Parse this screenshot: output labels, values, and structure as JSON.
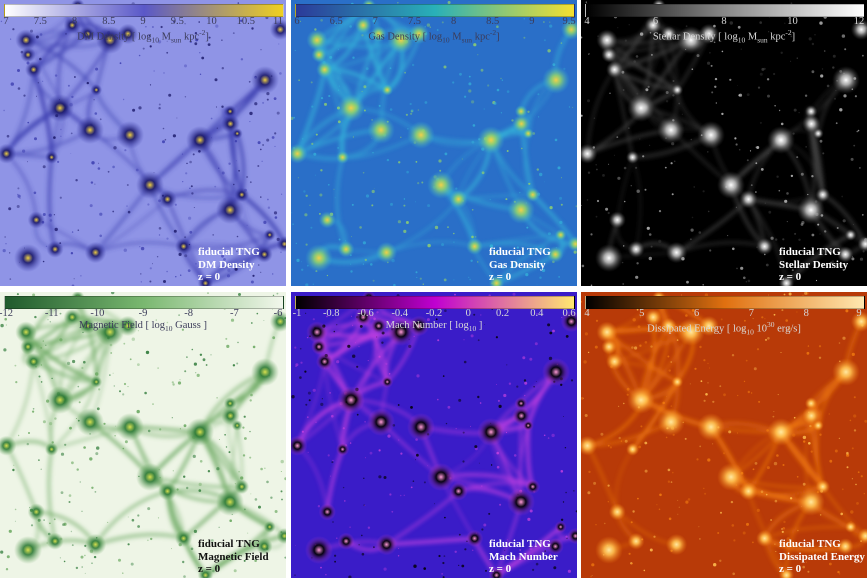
{
  "panels": [
    {
      "id": "dm",
      "cbar_label_text": "DM Density [ log10 Msun kpc-2 ]",
      "cbar_label": {
        "pre": "DM Density [ log",
        "sub1": "10",
        "mid": " M",
        "sub2": "sun",
        "mid2": " kpc",
        "sup": "-2",
        "post": "]"
      },
      "ticks": [
        "7",
        "7.5",
        "8",
        "8.5",
        "9",
        "9.5",
        "10",
        "10.5",
        "11"
      ],
      "caption": [
        "fiducial TNG",
        "DM Density",
        "z = 0"
      ],
      "colors": {
        "bg": "#8f94e6",
        "fil": "#3d3fb0",
        "knot": "#1c1a6b",
        "hot": "#f0d040",
        "cbar_start": "#ffffff",
        "cbar_mid": "#5a58c8",
        "cbar_end": "#f0d020",
        "text": "#ffffff"
      }
    },
    {
      "id": "gas",
      "cbar_label_text": "Gas Density [ log10 Msun kpc-2 ]",
      "cbar_label": {
        "pre": "Gas Density [ log",
        "sub1": "10",
        "mid": " M",
        "sub2": "sun",
        "mid2": " kpc",
        "sup": "-2",
        "post": "]"
      },
      "ticks": [
        "6",
        "6.5",
        "7",
        "7.5",
        "8",
        "8.5",
        "9",
        "9.5"
      ],
      "caption": [
        "fiducial TNG",
        "Gas Density",
        "z = 0"
      ],
      "colors": {
        "bg": "#2a6fc8",
        "fil": "#34b0d8",
        "knot": "#8fd070",
        "hot": "#f2d048",
        "cbar_start": "#2b3a9a",
        "cbar_mid": "#29b0b8",
        "cbar_end": "#f5e030",
        "text": "#ffffff"
      }
    },
    {
      "id": "stars",
      "cbar_label_text": "Stellar Density [ log10 Msun kpc-2 ]",
      "cbar_label": {
        "pre": "Stellar Density [ log",
        "sub1": "10",
        "mid": " M",
        "sub2": "sun",
        "mid2": " kpc",
        "sup": "-2",
        "post": "]"
      },
      "ticks": [
        "4",
        "6",
        "8",
        "10",
        "12"
      ],
      "caption": [
        "fiducial TNG",
        "Stellar Density",
        "z = 0"
      ],
      "colors": {
        "bg": "#000000",
        "fil": "#444444",
        "knot": "#bbbbbb",
        "hot": "#ffffff",
        "cbar_start": "#000000",
        "cbar_mid": "#888888",
        "cbar_end": "#ffffff",
        "text": "#ffffff"
      }
    },
    {
      "id": "bfield",
      "cbar_label_text": "Magnetic Field [ log10 Gauss ]",
      "cbar_label": {
        "pre": "Magnetic Field [ log",
        "sub1": "10",
        "mid": " Gauss",
        "sub2": "",
        "mid2": "",
        "sup": "",
        "post": " ]"
      },
      "ticks": [
        "-12",
        "-11",
        "-10",
        "-9",
        "-8",
        "-7",
        "-6"
      ],
      "caption": [
        "fiducial TNG",
        "Magnetic Field",
        "z = 0"
      ],
      "colors": {
        "bg": "#eef5e6",
        "fil": "#6aa860",
        "knot": "#2e7a38",
        "hot": "#d8e050",
        "cbar_start": "#1f5a2c",
        "cbar_mid": "#7ab870",
        "cbar_end": "#f2f7ec",
        "text": "#111111"
      }
    },
    {
      "id": "mach",
      "cbar_label_text": "Mach Number [ log10 ]",
      "cbar_label": {
        "pre": "Mach Number [ log",
        "sub1": "10",
        "mid": "",
        "sub2": "",
        "mid2": "",
        "sup": "",
        "post": " ]"
      },
      "ticks": [
        "-1",
        "-0.8",
        "-0.6",
        "-0.4",
        "-0.2",
        "0",
        "0.2",
        "0.4",
        "0.6"
      ],
      "caption": [
        "fiducial TNG",
        "Mach Number",
        "z = 0"
      ],
      "colors": {
        "bg": "#3a1cc8",
        "fil": "#c040e0",
        "knot": "#000000",
        "hot": "#ff9ad8",
        "cbar_start": "#000000",
        "cbar_mid": "#c000d0",
        "cbar_end": "#ffe870",
        "text": "#ffffff"
      }
    },
    {
      "id": "energy",
      "cbar_label_text": "Dissipated Energy [ log10 10^30 erg/s ]",
      "cbar_label": {
        "pre": "Dissipated Energy [ log",
        "sub1": "10",
        "mid": " 10",
        "sub2": "",
        "mid2": "",
        "sup": "30",
        "post": " erg/s]"
      },
      "ticks": [
        "4",
        "5",
        "6",
        "7",
        "8",
        "9"
      ],
      "caption": [
        "fiducial TNG",
        "Dissipated Energy",
        "z = 0"
      ],
      "colors": {
        "bg": "#b83a08",
        "fil": "#f07a10",
        "knot": "#ffc050",
        "hot": "#ffe9a0",
        "cbar_start": "#000000",
        "cbar_mid": "#e07010",
        "cbar_end": "#ffe8b0",
        "text": "#ffffff"
      }
    }
  ]
}
